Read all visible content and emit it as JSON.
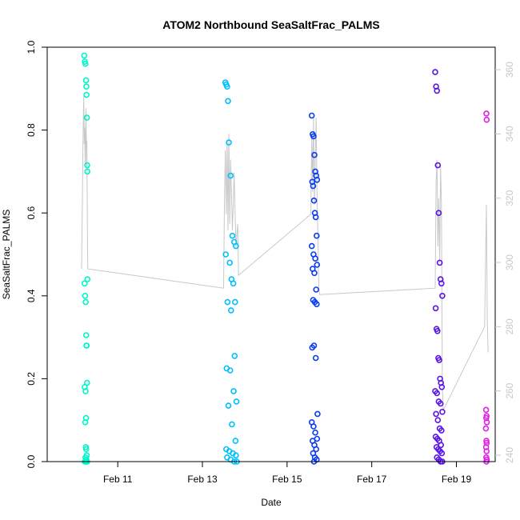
{
  "chart_data": {
    "type": "scatter",
    "title": "ATOM2 Northbound SeaSaltFrac_PALMS",
    "xlabel": "Date",
    "ylabel": "SeaSaltFrac_PALMS",
    "xlim": [
      "2017-02-09T08:00",
      "2017-02-19T22:00"
    ],
    "ylim": [
      0,
      1
    ],
    "yticks": [
      0.0,
      0.2,
      0.4,
      0.6,
      0.8,
      1.0
    ],
    "ytick_labels": [
      "0.0",
      "0.2",
      "0.4",
      "0.6",
      "0.8",
      "1.0"
    ],
    "xticks": [
      "2017-02-11",
      "2017-02-13",
      "2017-02-15",
      "2017-02-17",
      "2017-02-19"
    ],
    "xtick_labels": [
      "Feb 11",
      "Feb 13",
      "Feb 15",
      "Feb 17",
      "Feb 19"
    ],
    "y2lim": [
      238,
      367
    ],
    "y2ticks": [
      240,
      260,
      280,
      300,
      320,
      340,
      360
    ],
    "y2tick_labels": [
      "240",
      "260",
      "280",
      "300",
      "320",
      "340",
      "360"
    ],
    "grid": false,
    "legend": "none",
    "series": [
      {
        "color": "#00f5c8",
        "x": [
          "2017-02-10T05:00",
          "2017-02-10T05:20",
          "2017-02-10T05:40",
          "2017-02-10T06:00",
          "2017-02-10T06:10",
          "2017-02-10T06:20",
          "2017-02-10T06:30",
          "2017-02-10T06:40",
          "2017-02-10T06:45",
          "2017-02-10T06:50",
          "2017-02-10T05:10",
          "2017-02-10T05:30",
          "2017-02-10T05:50",
          "2017-02-10T06:05",
          "2017-02-10T06:15",
          "2017-02-10T06:25",
          "2017-02-10T06:35",
          "2017-02-10T05:15",
          "2017-02-10T05:45",
          "2017-02-10T06:00",
          "2017-02-10T05:35",
          "2017-02-10T05:55",
          "2017-02-10T06:05",
          "2017-02-10T06:25",
          "2017-02-10T05:40",
          "2017-02-10T06:10",
          "2017-02-10T06:40",
          "2017-02-10T05:20",
          "2017-02-10T05:50",
          "2017-02-10T06:20",
          "2017-02-10T06:30"
        ],
        "y": [
          0.98,
          0.965,
          0.96,
          0.92,
          0.905,
          0.885,
          0.83,
          0.715,
          0.7,
          0.44,
          0.43,
          0.4,
          0.385,
          0.305,
          0.28,
          0.28,
          0.19,
          0.18,
          0.17,
          0.105,
          0.095,
          0.035,
          0.03,
          0.015,
          0.01,
          0.005,
          0.0,
          0.0,
          0.0,
          0.0,
          0.0
        ]
      },
      {
        "color": "#00bfff",
        "x": [
          "2017-02-13T13:00",
          "2017-02-13T13:30",
          "2017-02-13T14:00",
          "2017-02-13T14:30",
          "2017-02-13T15:00",
          "2017-02-13T16:00",
          "2017-02-13T17:00",
          "2017-02-13T18:00",
          "2017-02-13T19:00",
          "2017-02-13T13:15",
          "2017-02-13T15:30",
          "2017-02-13T16:30",
          "2017-02-13T17:30",
          "2017-02-13T18:30",
          "2017-02-13T14:15",
          "2017-02-13T16:15",
          "2017-02-13T18:15",
          "2017-02-13T13:45",
          "2017-02-13T15:45",
          "2017-02-13T17:45",
          "2017-02-13T19:15",
          "2017-02-13T14:45",
          "2017-02-13T16:45",
          "2017-02-13T18:45",
          "2017-02-13T13:30",
          "2017-02-13T15:15",
          "2017-02-13T17:15",
          "2017-02-13T19:00",
          "2017-02-13T14:00",
          "2017-02-13T16:00",
          "2017-02-13T18:00",
          "2017-02-13T19:30"
        ],
        "y": [
          0.915,
          0.91,
          0.905,
          0.87,
          0.77,
          0.69,
          0.545,
          0.53,
          0.52,
          0.5,
          0.48,
          0.44,
          0.43,
          0.385,
          0.385,
          0.365,
          0.255,
          0.225,
          0.22,
          0.17,
          0.145,
          0.135,
          0.09,
          0.05,
          0.03,
          0.025,
          0.02,
          0.015,
          0.01,
          0.005,
          0.0,
          0.0
        ]
      },
      {
        "color": "#0a3cf0",
        "x": [
          "2017-02-15T14:00",
          "2017-02-15T14:30",
          "2017-02-15T15:00",
          "2017-02-15T15:30",
          "2017-02-15T16:00",
          "2017-02-15T16:30",
          "2017-02-15T17:00",
          "2017-02-15T14:15",
          "2017-02-15T14:45",
          "2017-02-15T15:15",
          "2017-02-15T15:45",
          "2017-02-15T16:15",
          "2017-02-15T16:45",
          "2017-02-15T14:00",
          "2017-02-15T15:00",
          "2017-02-15T16:00",
          "2017-02-15T17:00",
          "2017-02-15T14:30",
          "2017-02-15T15:30",
          "2017-02-15T16:30",
          "2017-02-15T14:45",
          "2017-02-15T15:45",
          "2017-02-15T16:45",
          "2017-02-15T14:15",
          "2017-02-15T15:15",
          "2017-02-15T16:15",
          "2017-02-15T17:15",
          "2017-02-15T14:00",
          "2017-02-15T15:00",
          "2017-02-15T16:00",
          "2017-02-15T17:00",
          "2017-02-15T14:30",
          "2017-02-15T15:30",
          "2017-02-15T16:30",
          "2017-02-15T14:45",
          "2017-02-15T15:45",
          "2017-02-15T16:45",
          "2017-02-15T15:15"
        ],
        "y": [
          0.835,
          0.79,
          0.785,
          0.74,
          0.7,
          0.69,
          0.68,
          0.675,
          0.665,
          0.63,
          0.6,
          0.59,
          0.545,
          0.52,
          0.5,
          0.49,
          0.475,
          0.465,
          0.455,
          0.415,
          0.39,
          0.385,
          0.38,
          0.275,
          0.28,
          0.25,
          0.115,
          0.095,
          0.085,
          0.07,
          0.055,
          0.05,
          0.04,
          0.03,
          0.02,
          0.01,
          0.005,
          0.0
        ]
      },
      {
        "color": "#5a14e6",
        "x": [
          "2017-02-18T12:00",
          "2017-02-18T12:30",
          "2017-02-18T13:00",
          "2017-02-18T13:30",
          "2017-02-18T14:00",
          "2017-02-18T14:30",
          "2017-02-18T15:00",
          "2017-02-18T15:30",
          "2017-02-18T16:00",
          "2017-02-18T12:15",
          "2017-02-18T12:45",
          "2017-02-18T13:15",
          "2017-02-18T13:45",
          "2017-02-18T14:15",
          "2017-02-18T14:45",
          "2017-02-18T15:15",
          "2017-02-18T15:45",
          "2017-02-18T12:00",
          "2017-02-18T13:00",
          "2017-02-18T14:00",
          "2017-02-18T15:00",
          "2017-02-18T16:00",
          "2017-02-18T12:30",
          "2017-02-18T13:30",
          "2017-02-18T14:30",
          "2017-02-18T15:30",
          "2017-02-18T12:15",
          "2017-02-18T13:15",
          "2017-02-18T14:15",
          "2017-02-18T15:15",
          "2017-02-18T12:45",
          "2017-02-18T13:45",
          "2017-02-18T14:45",
          "2017-02-18T15:45",
          "2017-02-18T13:00",
          "2017-02-18T14:00",
          "2017-02-18T15:00",
          "2017-02-18T16:00"
        ],
        "y": [
          0.94,
          0.905,
          0.895,
          0.715,
          0.6,
          0.48,
          0.44,
          0.43,
          0.4,
          0.37,
          0.32,
          0.315,
          0.25,
          0.245,
          0.2,
          0.19,
          0.18,
          0.17,
          0.165,
          0.145,
          0.14,
          0.12,
          0.115,
          0.1,
          0.08,
          0.075,
          0.06,
          0.055,
          0.05,
          0.04,
          0.035,
          0.03,
          0.025,
          0.02,
          0.01,
          0.005,
          0.0,
          0.0
        ]
      },
      {
        "color": "#e01ee6",
        "x": [
          "2017-02-19T17:00",
          "2017-02-19T17:10",
          "2017-02-19T16:50",
          "2017-02-19T17:05",
          "2017-02-19T16:55",
          "2017-02-19T17:15",
          "2017-02-19T16:45",
          "2017-02-19T17:00",
          "2017-02-19T17:10",
          "2017-02-19T16:50",
          "2017-02-19T17:05",
          "2017-02-19T16:55",
          "2017-02-19T17:15",
          "2017-02-19T17:00"
        ],
        "y": [
          0.84,
          0.825,
          0.125,
          0.11,
          0.105,
          0.095,
          0.08,
          0.05,
          0.045,
          0.035,
          0.025,
          0.01,
          0.005,
          0.0
        ]
      }
    ],
    "secondary_line": {
      "color": "#c8c8c8",
      "x": [
        "2017-02-10T03:30",
        "2017-02-10T03:45",
        "2017-02-10T04:00",
        "2017-02-10T04:15",
        "2017-02-10T04:30",
        "2017-02-10T04:45",
        "2017-02-10T05:00",
        "2017-02-10T05:15",
        "2017-02-10T05:30",
        "2017-02-10T05:45",
        "2017-02-10T06:00",
        "2017-02-10T06:15",
        "2017-02-10T06:30",
        "2017-02-10T06:45",
        "2017-02-10T07:00",
        "2017-02-13T12:00",
        "2017-02-13T12:30",
        "2017-02-13T13:00",
        "2017-02-13T13:30",
        "2017-02-13T14:00",
        "2017-02-13T14:30",
        "2017-02-13T15:00",
        "2017-02-13T15:30",
        "2017-02-13T16:00",
        "2017-02-13T17:00",
        "2017-02-13T18:00",
        "2017-02-13T19:00",
        "2017-02-13T20:00",
        "2017-02-13T20:30",
        "2017-02-15T13:30",
        "2017-02-15T14:00",
        "2017-02-15T14:30",
        "2017-02-15T15:00",
        "2017-02-15T15:30",
        "2017-02-15T16:00",
        "2017-02-15T16:30",
        "2017-02-15T17:00",
        "2017-02-15T17:30",
        "2017-02-15T18:00",
        "2017-02-15T18:30",
        "2017-02-18T12:00",
        "2017-02-18T12:30",
        "2017-02-18T13:00",
        "2017-02-18T13:30",
        "2017-02-18T14:00",
        "2017-02-18T14:30",
        "2017-02-18T15:00",
        "2017-02-18T15:30",
        "2017-02-18T16:00",
        "2017-02-18T16:30",
        "2017-02-19T16:00",
        "2017-02-19T16:30",
        "2017-02-19T17:00",
        "2017-02-19T17:30",
        "2017-02-19T18:00"
      ],
      "y": [
        298,
        310,
        322,
        335,
        345,
        352,
        337,
        342,
        330,
        340,
        348,
        330,
        338,
        312,
        298,
        292,
        320,
        335,
        315,
        338,
        310,
        340,
        312,
        332,
        310,
        328,
        305,
        312,
        296,
        315,
        340,
        322,
        345,
        318,
        332,
        345,
        320,
        308,
        292,
        290,
        292,
        325,
        332,
        305,
        320,
        300,
        330,
        318,
        262,
        254,
        280,
        300,
        318,
        282,
        272
      ]
    }
  }
}
